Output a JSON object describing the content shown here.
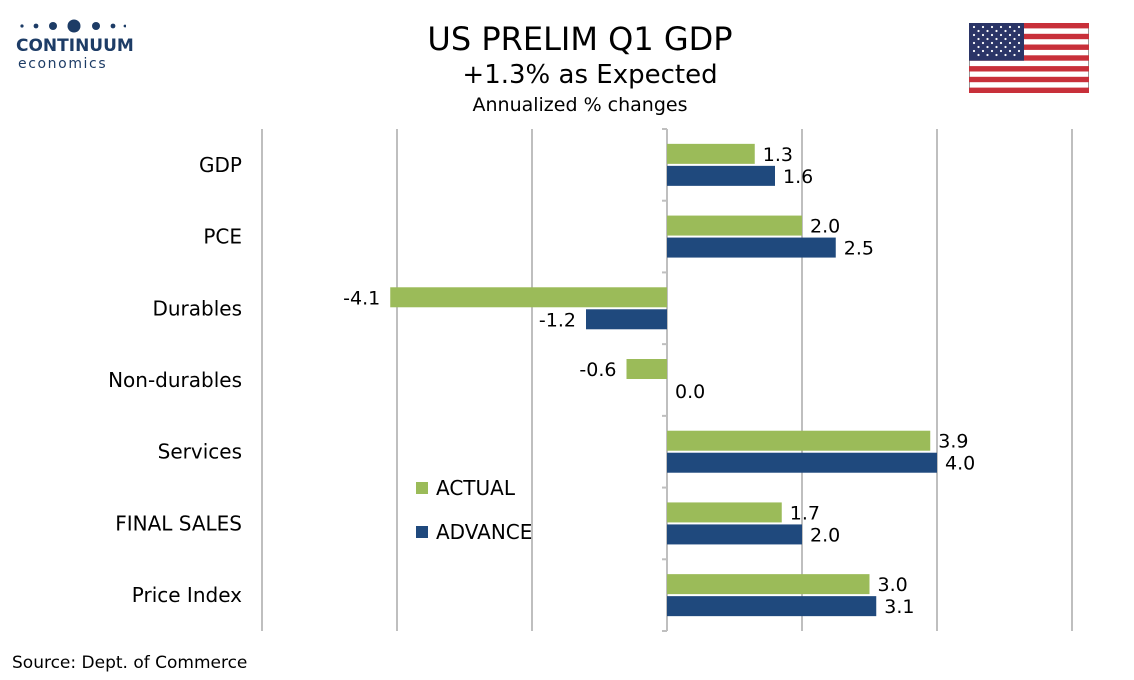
{
  "logo": {
    "word": "CONTINUUM",
    "sub": "economics"
  },
  "header": {
    "title": "US PRELIM Q1 GDP",
    "subtitle": "+1.3% as Expected",
    "subtitle2": "Annualized % changes"
  },
  "source": "Source: Dept. of Commerce",
  "colors": {
    "actual": "#9bbb59",
    "advance": "#1f497d",
    "grid": "#bfbfbf",
    "logo": "#1d3c66"
  },
  "chart_data": {
    "type": "bar",
    "orientation": "horizontal",
    "categories": [
      "GDP",
      "PCE",
      "Durables",
      "Non-durables",
      "Services",
      "FINAL SALES",
      "Price Index"
    ],
    "series": [
      {
        "name": "ACTUAL",
        "values": [
          1.3,
          2.0,
          -4.1,
          -0.6,
          3.9,
          1.7,
          3.0
        ]
      },
      {
        "name": "ADVANCE",
        "values": [
          1.6,
          2.5,
          -1.2,
          0.0,
          4.0,
          2.0,
          3.1
        ]
      }
    ],
    "value_labels": {
      "ACTUAL": [
        "1.3",
        "2.0",
        "-4.1",
        "-0.6",
        "3.9",
        "1.7",
        "3.0"
      ],
      "ADVANCE": [
        "1.6",
        "2.5",
        "-1.2",
        "0.0",
        "4.0",
        "2.0",
        "3.1"
      ]
    },
    "xlim": [
      -6,
      6
    ],
    "grid": true,
    "legend": "center-left"
  }
}
